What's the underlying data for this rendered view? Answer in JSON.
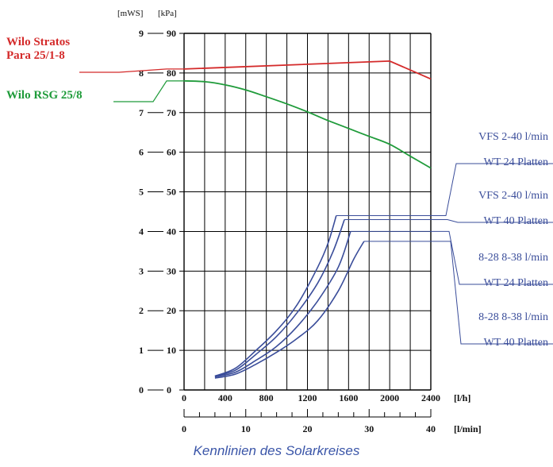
{
  "chart_data": {
    "type": "line",
    "title": "Kennlinien des Solarkreises",
    "x_primary": {
      "unit": "[l/h]",
      "range": [
        0,
        2400
      ],
      "ticks": [
        0,
        400,
        800,
        1200,
        1600,
        2000,
        2400
      ]
    },
    "x_secondary": {
      "unit": "[l/min]",
      "range": [
        0,
        40
      ],
      "ticks": [
        0,
        10,
        20,
        30,
        40
      ]
    },
    "y_units": {
      "mws": "[mWS]",
      "kpa": "[kPa]"
    },
    "y_mws_ticks": [
      0,
      1,
      2,
      3,
      4,
      5,
      6,
      7,
      8,
      9
    ],
    "y_kpa_ticks": [
      0,
      10,
      20,
      30,
      40,
      50,
      60,
      70,
      80,
      90
    ],
    "ylim_kpa": [
      0,
      90
    ],
    "grid": true,
    "pump_curves": [
      {
        "label_lines": [
          "Wilo Stratos",
          "Para 25/1-8"
        ],
        "color": "#d42a2a",
        "points": [
          [
            0,
            81
          ],
          [
            2000,
            83
          ],
          [
            2400,
            78.5
          ]
        ]
      },
      {
        "label_lines": [
          "Wilo RSG 25/8"
        ],
        "color": "#1f9b3a",
        "points": [
          [
            0,
            78
          ],
          [
            200,
            77.8
          ],
          [
            400,
            77
          ],
          [
            600,
            75.7
          ],
          [
            800,
            74
          ],
          [
            1000,
            72.2
          ],
          [
            1200,
            70.2
          ],
          [
            1400,
            68
          ],
          [
            1600,
            66
          ],
          [
            1800,
            64
          ],
          [
            2000,
            62
          ],
          [
            2200,
            59
          ],
          [
            2400,
            56
          ]
        ]
      }
    ],
    "system_curves": [
      {
        "label_lines": [
          "VFS 2-40 l/min",
          "WT 24 Platten"
        ],
        "color": "#3a4d9a",
        "points": [
          [
            300,
            3.5
          ],
          [
            500,
            5.5
          ],
          [
            700,
            10
          ],
          [
            900,
            15
          ],
          [
            1100,
            21.5
          ],
          [
            1300,
            31
          ],
          [
            1400,
            37
          ],
          [
            1480,
            44
          ]
        ]
      },
      {
        "label_lines": [
          "VFS 2-40 l/min",
          "WT 40 Platten"
        ],
        "color": "#3a4d9a",
        "points": [
          [
            300,
            3.5
          ],
          [
            500,
            5
          ],
          [
            700,
            9
          ],
          [
            900,
            13.5
          ],
          [
            1100,
            19.5
          ],
          [
            1300,
            27
          ],
          [
            1450,
            35
          ],
          [
            1560,
            43
          ]
        ]
      },
      {
        "label_lines": [
          "8-28 8-38 l/min",
          "WT 24 Platten"
        ],
        "color": "#3a4d9a",
        "points": [
          [
            300,
            3.3
          ],
          [
            500,
            4.5
          ],
          [
            700,
            7.5
          ],
          [
            900,
            11
          ],
          [
            1100,
            16
          ],
          [
            1300,
            22.5
          ],
          [
            1500,
            31
          ],
          [
            1620,
            40
          ]
        ]
      },
      {
        "label_lines": [
          "8-28 8-38 l/min",
          "WT 40 Platten"
        ],
        "color": "#3a4d9a",
        "points": [
          [
            300,
            3
          ],
          [
            500,
            4
          ],
          [
            700,
            6.5
          ],
          [
            900,
            9.5
          ],
          [
            1100,
            13
          ],
          [
            1300,
            17.5
          ],
          [
            1500,
            25
          ],
          [
            1650,
            33
          ],
          [
            1750,
            37.5
          ]
        ]
      }
    ]
  }
}
